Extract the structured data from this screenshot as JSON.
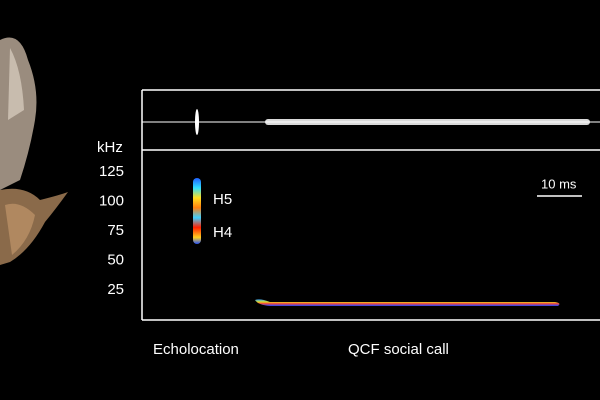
{
  "axis": {
    "unit": "kHz",
    "ticks": [
      125,
      100,
      75,
      50,
      25
    ]
  },
  "annotations": {
    "harmonics": [
      "H5",
      "H4"
    ],
    "scale_bar": "10 ms"
  },
  "call_labels": [
    "Echolocation",
    "QCF social call"
  ]
}
